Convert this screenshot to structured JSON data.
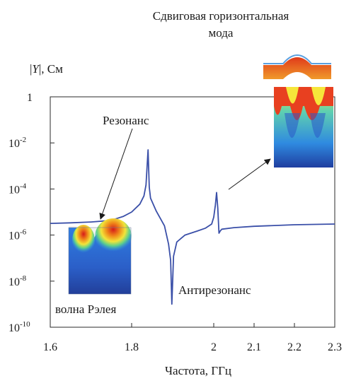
{
  "chart_data": {
    "type": "line",
    "title": "Сдвиговая горизонтальная мода",
    "title_lines": [
      "Сдвиговая горизонтальная",
      "мода"
    ],
    "ylabel_parts": [
      "|",
      "Y",
      "|, См"
    ],
    "xlabel": "Частота, ГГц",
    "x_scale": "piecewise-linear",
    "y_scale": "log",
    "xlim": [
      1.6,
      2.3
    ],
    "ylim": [
      1e-10,
      1
    ],
    "x_ticks": [
      1.6,
      1.8,
      2.0,
      2.1,
      2.2,
      2.3
    ],
    "x_tick_labels": [
      "1.6",
      "1.8",
      "2",
      "2.1",
      "2.2",
      "2.3"
    ],
    "y_ticks": [
      {
        "value": 1,
        "base": "1",
        "exp": ""
      },
      {
        "value": 0.01,
        "base": "10",
        "exp": "-2"
      },
      {
        "value": 0.0001,
        "base": "10",
        "exp": "-4"
      },
      {
        "value": 1e-06,
        "base": "10",
        "exp": "-6"
      },
      {
        "value": 1e-08,
        "base": "10",
        "exp": "-8"
      },
      {
        "value": 1e-10,
        "base": "10",
        "exp": "-10"
      }
    ],
    "grid": false,
    "series": [
      {
        "color": "#3a4fa8",
        "points": [
          [
            1.6,
            3.2e-06
          ],
          [
            1.65,
            3.4e-06
          ],
          [
            1.7,
            3.7e-06
          ],
          [
            1.74,
            4.2e-06
          ],
          [
            1.76,
            5e-06
          ],
          [
            1.78,
            6.5e-06
          ],
          [
            1.8,
            1e-05
          ],
          [
            1.82,
            2.2e-05
          ],
          [
            1.83,
            5e-05
          ],
          [
            1.835,
            0.00015
          ],
          [
            1.84,
            0.005
          ],
          [
            1.843,
            0.00012
          ],
          [
            1.846,
            4e-05
          ],
          [
            1.86,
            1.1e-05
          ],
          [
            1.88,
            2.5e-06
          ],
          [
            1.89,
            4e-07
          ],
          [
            1.895,
            8e-08
          ],
          [
            1.898,
            1e-09
          ],
          [
            1.902,
            1.2e-07
          ],
          [
            1.91,
            5e-07
          ],
          [
            1.93,
            1e-06
          ],
          [
            1.96,
            1.5e-06
          ],
          [
            1.98,
            2e-06
          ],
          [
            1.995,
            3e-06
          ],
          [
            2.0,
            6e-06
          ],
          [
            2.004,
            2e-05
          ],
          [
            2.007,
            7e-05
          ],
          [
            2.01,
            1.5e-05
          ],
          [
            2.013,
            1.2e-06
          ],
          [
            2.016,
            1.5e-06
          ],
          [
            2.02,
            1.8e-06
          ],
          [
            2.05,
            2.1e-06
          ],
          [
            2.1,
            2.4e-06
          ],
          [
            2.2,
            2.8e-06
          ],
          [
            2.3,
            3e-06
          ]
        ]
      }
    ],
    "annotations": [
      {
        "text": "Резонанс"
      },
      {
        "text": "Антирезонанс"
      },
      {
        "text": "волна Рэлея"
      }
    ]
  }
}
